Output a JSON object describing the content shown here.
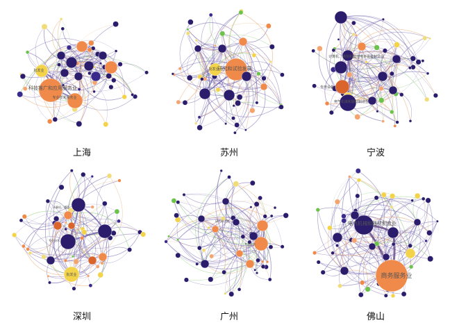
{
  "figure": {
    "palette": {
      "navy": "#2b1d6b",
      "indigo": "#3a2a8c",
      "orange": "#f08a4b",
      "light_orange": "#f4a46e",
      "dark_orange": "#d9652c",
      "yellow": "#f3d34a",
      "pale_yellow": "#f1dc7a",
      "green": "#6cc24a",
      "edge_purple": "#6a5aa8",
      "edge_orange": "#e8a46a",
      "edge_green": "#7fc86a"
    },
    "panels": [
      {
        "title": "上海",
        "labels": [
          "科技推广和应用服务业",
          "专业技术服务业",
          "批发业"
        ]
      },
      {
        "title": "苏州",
        "labels": [
          "研究和试验发展",
          "批发业"
        ]
      },
      {
        "title": "宁波",
        "labels": [
          "计算机、通信和其他电子设备制造业",
          "专用设备",
          "电气机械和器材制造业"
        ]
      },
      {
        "title": "深圳",
        "labels": [
          "批发业",
          "计算机、通信",
          "专业技术"
        ]
      },
      {
        "title": "广州",
        "labels": [
          "研究和试验",
          "专业技术"
        ]
      },
      {
        "title": "佛山",
        "labels": [
          "商务服务业",
          "电气机械和器材制造业"
        ]
      }
    ]
  }
}
